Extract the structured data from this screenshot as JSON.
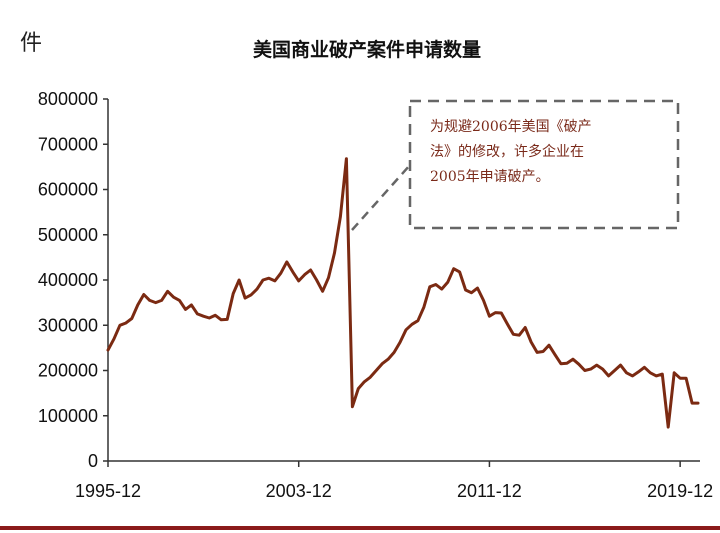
{
  "chart_data": {
    "type": "line",
    "title": "美国商业破产案件申请数量",
    "unit_label": "件",
    "ylim": [
      0,
      800000
    ],
    "y_ticks": [
      0,
      100000,
      200000,
      300000,
      400000,
      500000,
      600000,
      700000,
      800000
    ],
    "y_tick_labels": [
      "0",
      "100000",
      "200000",
      "300000",
      "400000",
      "500000",
      "600000",
      "700000",
      "800000"
    ],
    "x_tick_labels": [
      "1995-12",
      "2003-12",
      "2011-12",
      "2019-12"
    ],
    "x_tick_positions": [
      1995.917,
      2003.917,
      2011.917,
      2019.917
    ],
    "xlim": [
      1995.917,
      2020.75
    ],
    "grid": false,
    "line_color": "#7b2a12",
    "series": [
      {
        "x": [
          1995.917,
          1996.167,
          1996.417,
          1996.667,
          1996.917,
          1997.167,
          1997.417,
          1997.667,
          1997.917,
          1998.167,
          1998.417,
          1998.667,
          1998.917,
          1999.167,
          1999.417,
          1999.667,
          1999.917,
          2000.167,
          2000.417,
          2000.667,
          2000.917,
          2001.167,
          2001.417,
          2001.667,
          2001.917,
          2002.167,
          2002.417,
          2002.667,
          2002.917,
          2003.167,
          2003.417,
          2003.667,
          2003.917,
          2004.167,
          2004.417,
          2004.667,
          2004.917,
          2005.167,
          2005.417,
          2005.667,
          2005.917,
          2006.167,
          2006.417,
          2006.667,
          2006.917,
          2007.167,
          2007.417,
          2007.667,
          2007.917,
          2008.167,
          2008.417,
          2008.667,
          2008.917,
          2009.167,
          2009.417,
          2009.667,
          2009.917,
          2010.167,
          2010.417,
          2010.667,
          2010.917,
          2011.167,
          2011.417,
          2011.667,
          2011.917,
          2012.167,
          2012.417,
          2012.667,
          2012.917,
          2013.167,
          2013.417,
          2013.667,
          2013.917,
          2014.167,
          2014.417,
          2014.667,
          2014.917,
          2015.167,
          2015.417,
          2015.667,
          2015.917,
          2016.167,
          2016.417,
          2016.667,
          2016.917,
          2017.167,
          2017.417,
          2017.667,
          2017.917,
          2018.167,
          2018.417,
          2018.667,
          2018.917,
          2019.167,
          2019.417,
          2019.667,
          2019.917,
          2020.167,
          2020.417,
          2020.667
        ],
        "values": [
          245000,
          270000,
          300000,
          305000,
          315000,
          345000,
          368000,
          355000,
          350000,
          355000,
          375000,
          362000,
          355000,
          335000,
          345000,
          325000,
          320000,
          316000,
          322000,
          312000,
          313000,
          370000,
          400000,
          360000,
          367000,
          380000,
          400000,
          404000,
          398000,
          415000,
          440000,
          418000,
          398000,
          412000,
          422000,
          400000,
          375000,
          405000,
          460000,
          540000,
          668000,
          120000,
          160000,
          175000,
          185000,
          200000,
          215000,
          225000,
          240000,
          262000,
          290000,
          302000,
          310000,
          340000,
          385000,
          390000,
          380000,
          395000,
          425000,
          418000,
          378000,
          372000,
          382000,
          355000,
          320000,
          328000,
          327000,
          303000,
          280000,
          278000,
          295000,
          263000,
          240000,
          242000,
          256000,
          235000,
          215000,
          216000,
          225000,
          214000,
          200000,
          203000,
          212000,
          203000,
          188000,
          200000,
          212000,
          195000,
          188000,
          197000,
          207000,
          195000,
          188000,
          192000,
          75000,
          195000,
          183000,
          183000,
          128000,
          128000
        ]
      }
    ],
    "annotation": {
      "lines": [
        "为规避2006年美国《破产",
        "法》的修改，许多企业在",
        "2005年申请破产。"
      ]
    }
  }
}
